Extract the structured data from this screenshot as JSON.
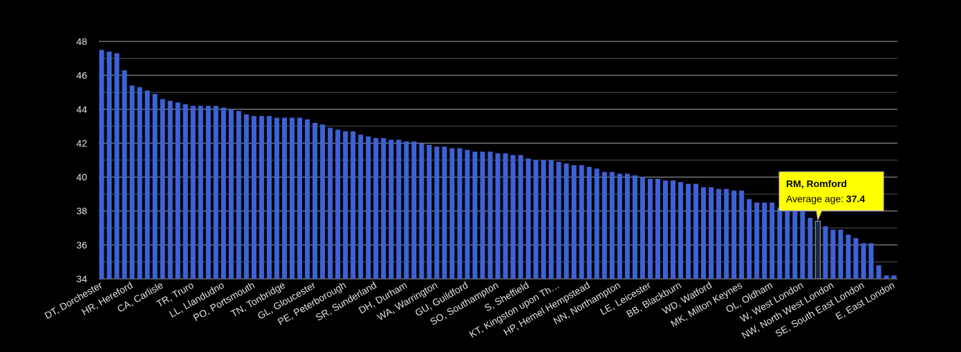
{
  "chart_data": {
    "type": "bar",
    "categories": [
      "DT, Dorchester",
      null,
      null,
      null,
      "HR, Hereford",
      null,
      null,
      null,
      "CA, Carlisle",
      null,
      null,
      null,
      "TR, Truro",
      null,
      null,
      null,
      "LL, Llandudno",
      null,
      null,
      null,
      "PO, Portsmouth",
      null,
      null,
      null,
      "TN, Tonbridge",
      null,
      null,
      null,
      "GL, Gloucester",
      null,
      null,
      null,
      "PE, Peterborough",
      null,
      null,
      null,
      "SR, Sunderland",
      null,
      null,
      null,
      "DH, Durham",
      null,
      null,
      null,
      "WA, Warrington",
      null,
      null,
      null,
      "GU, Guildford",
      null,
      null,
      null,
      "SO, Southampton",
      null,
      null,
      null,
      "S, Sheffield",
      null,
      null,
      null,
      "KT, Kingston upon Th…",
      null,
      null,
      null,
      "HP, Hemel Hempstead",
      null,
      null,
      null,
      "NN, Northampton",
      null,
      null,
      null,
      "LE, Leicester",
      null,
      null,
      null,
      "BB, Blackburn",
      null,
      null,
      null,
      "WD, Watford",
      null,
      null,
      null,
      "MK, Milton Keynes",
      null,
      null,
      null,
      "OL, Oldham",
      null,
      null,
      null,
      "W, West London",
      null,
      "RM, Romford",
      null,
      "NW, North West London",
      null,
      null,
      null,
      "SE, South East London",
      null,
      null,
      null,
      "E, East London"
    ],
    "values": [
      47.5,
      47.4,
      47.3,
      46.3,
      45.4,
      45.3,
      45.1,
      44.9,
      44.6,
      44.5,
      44.4,
      44.3,
      44.2,
      44.2,
      44.2,
      44.2,
      44.1,
      44.0,
      43.9,
      43.7,
      43.6,
      43.6,
      43.6,
      43.5,
      43.5,
      43.5,
      43.5,
      43.4,
      43.2,
      43.1,
      42.9,
      42.8,
      42.7,
      42.7,
      42.5,
      42.4,
      42.3,
      42.3,
      42.2,
      42.2,
      42.1,
      42.1,
      42.0,
      41.9,
      41.8,
      41.8,
      41.7,
      41.7,
      41.6,
      41.5,
      41.5,
      41.5,
      41.4,
      41.4,
      41.3,
      41.3,
      41.1,
      41.0,
      41.0,
      41.0,
      40.9,
      40.8,
      40.7,
      40.7,
      40.6,
      40.5,
      40.3,
      40.3,
      40.2,
      40.2,
      40.1,
      40.0,
      39.9,
      39.9,
      39.8,
      39.8,
      39.7,
      39.6,
      39.6,
      39.4,
      39.4,
      39.3,
      39.3,
      39.2,
      39.2,
      38.7,
      38.5,
      38.5,
      38.5,
      38.2,
      38.1,
      38.0,
      38.0,
      37.6,
      37.4,
      37.1,
      36.9,
      36.9,
      36.6,
      36.4,
      36.1,
      36.1,
      34.8,
      34.2,
      34.2
    ],
    "color": "#3d62d6",
    "highlight_color": "#1c2647",
    "ylim": [
      34,
      48
    ],
    "yticks": [
      34,
      36,
      38,
      40,
      42,
      44,
      46,
      48
    ],
    "minor_yticks": [
      35,
      37,
      39,
      41,
      43,
      45,
      47
    ],
    "grid": true,
    "tooltip": {
      "label": "Average age:"
    }
  }
}
